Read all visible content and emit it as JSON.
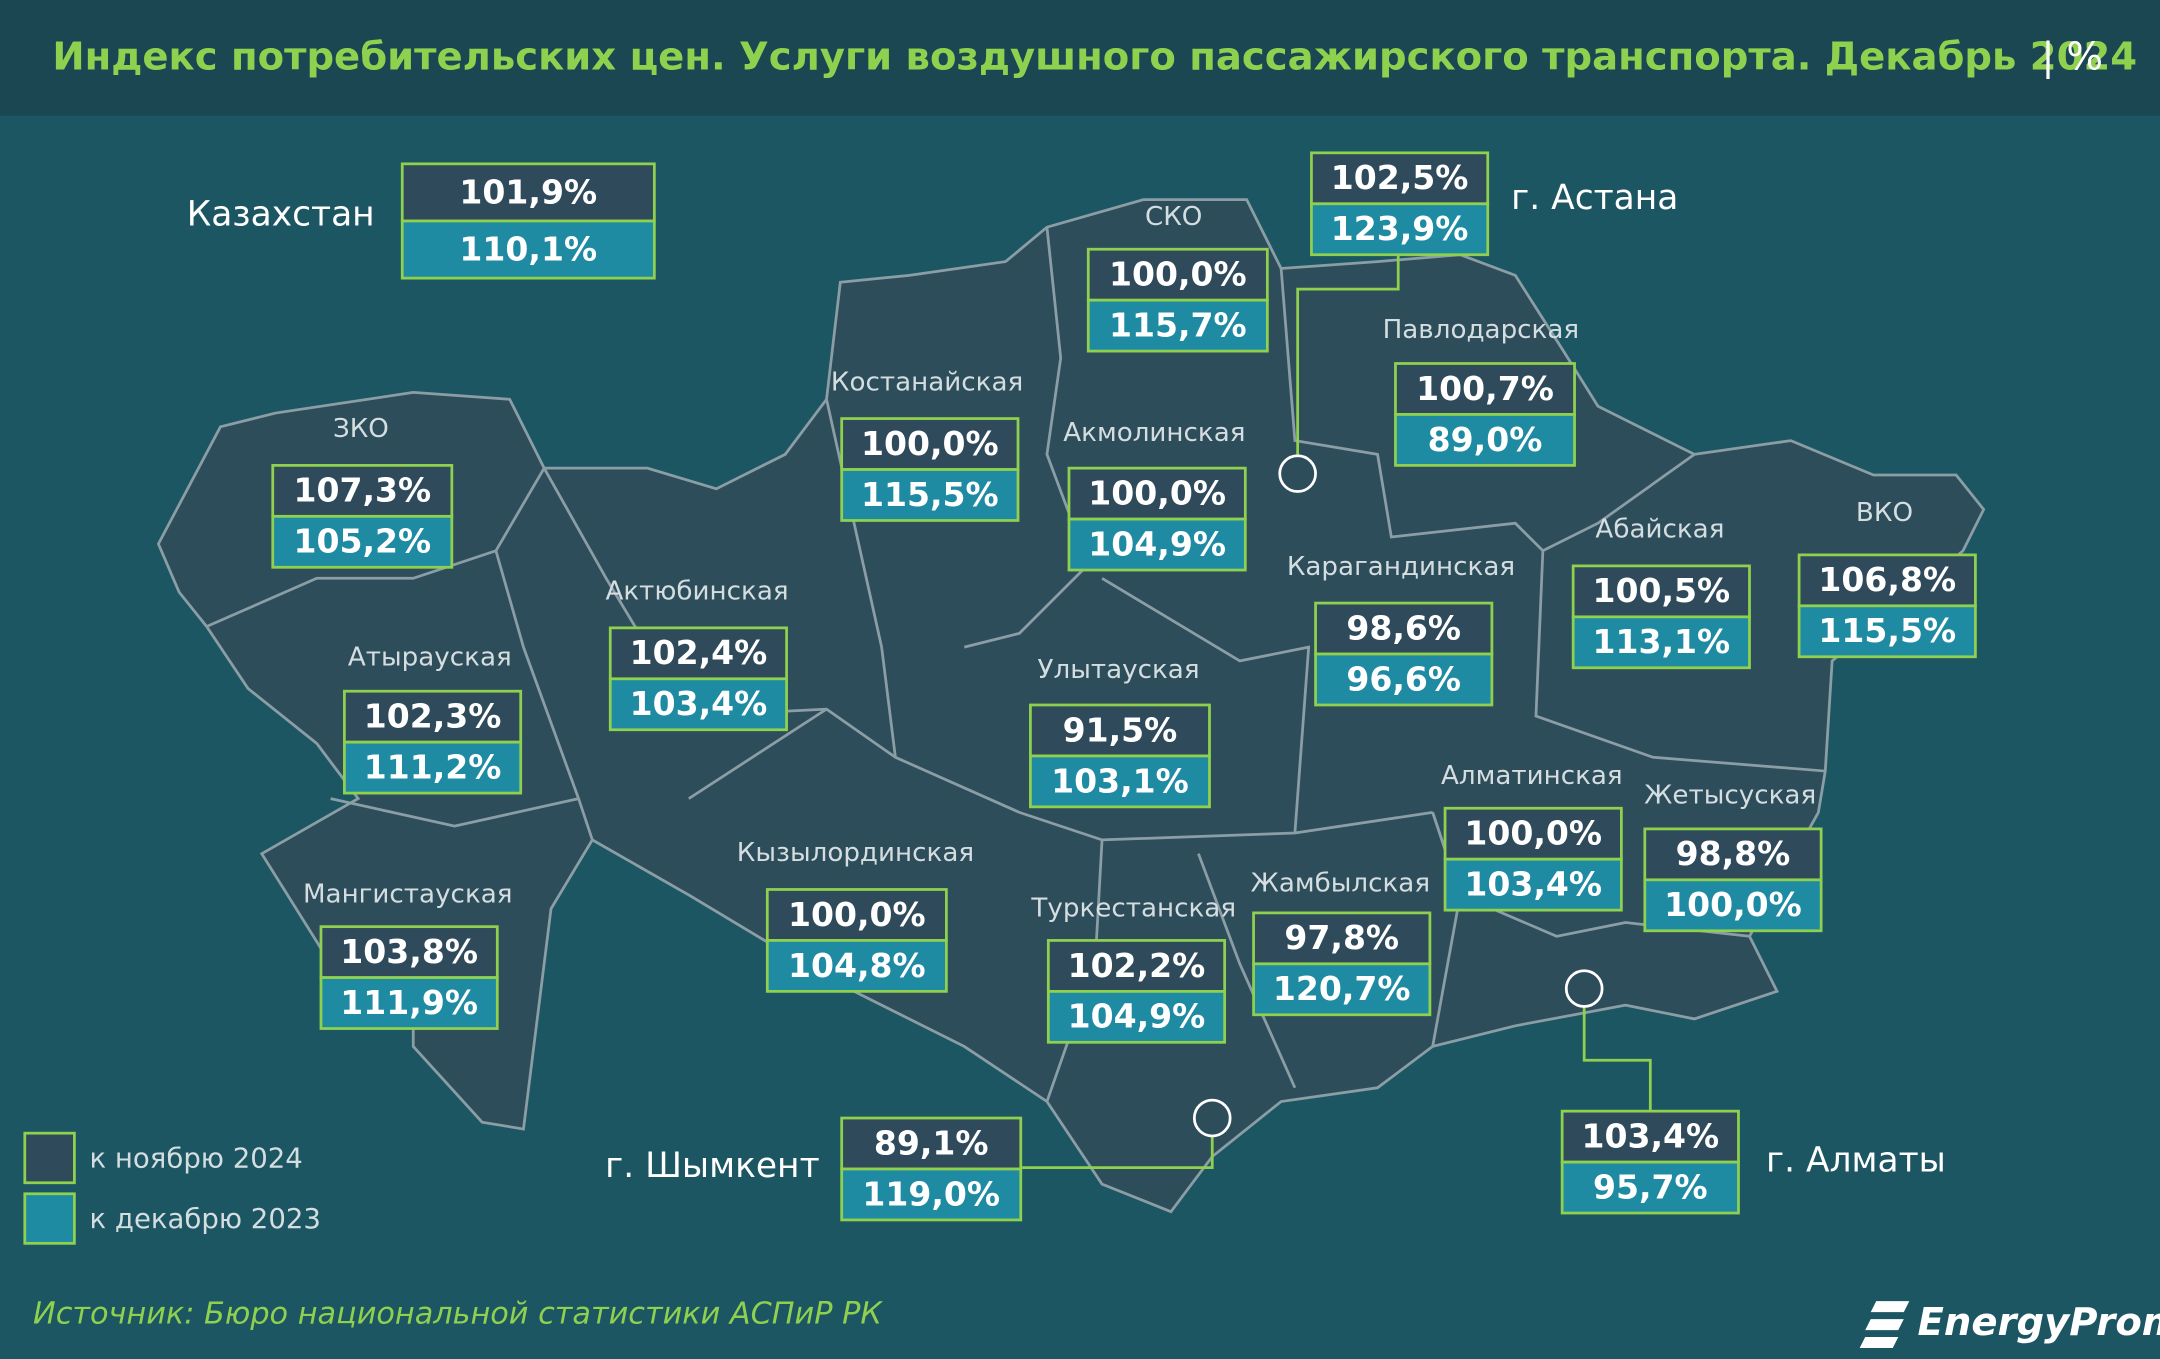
{
  "header": {
    "title": "Индекс потребительских цен. Услуги воздушного пассажирского транспорта. Декабрь 2024",
    "unit": "%"
  },
  "legend": [
    {
      "label": "к ноябрю 2024",
      "color": "#2f4a5a"
    },
    {
      "label": "к декабрю 2023",
      "color": "#1f8ba3"
    }
  ],
  "regions": [
    {
      "name": "Казахстан",
      "nov": "101,9%",
      "dec": "110,1%"
    },
    {
      "name": "г. Астана",
      "nov": "102,5%",
      "dec": "123,9%"
    },
    {
      "name": "СКО",
      "nov": "100,0%",
      "dec": "115,7%"
    },
    {
      "name": "Павлодарская",
      "nov": "100,7%",
      "dec": "89,0%"
    },
    {
      "name": "Костанайская",
      "nov": "100,0%",
      "dec": "115,5%"
    },
    {
      "name": "Акмолинская",
      "nov": "100,0%",
      "dec": "104,9%"
    },
    {
      "name": "ЗКО",
      "nov": "107,3%",
      "dec": "105,2%"
    },
    {
      "name": "Актюбинская",
      "nov": "102,4%",
      "dec": "103,4%"
    },
    {
      "name": "Карагандинская",
      "nov": "98,6%",
      "dec": "96,6%"
    },
    {
      "name": "Абайская",
      "nov": "100,5%",
      "dec": "113,1%"
    },
    {
      "name": "ВКО",
      "nov": "106,8%",
      "dec": "115,5%"
    },
    {
      "name": "Атырауская",
      "nov": "102,3%",
      "dec": "111,2%"
    },
    {
      "name": "Улытауская",
      "nov": "91,5%",
      "dec": "103,1%"
    },
    {
      "name": "Алматинская",
      "nov": "100,0%",
      "dec": "103,4%"
    },
    {
      "name": "Жетысуская",
      "nov": "98,8%",
      "dec": "100,0%"
    },
    {
      "name": "Кызылординская",
      "nov": "100,0%",
      "dec": "104,8%"
    },
    {
      "name": "Мангистауская",
      "nov": "103,8%",
      "dec": "111,9%"
    },
    {
      "name": "Туркестанская",
      "nov": "102,2%",
      "dec": "104,9%"
    },
    {
      "name": "Жамбылская",
      "nov": "97,8%",
      "dec": "120,7%"
    },
    {
      "name": "г. Шымкент",
      "nov": "89,1%",
      "dec": "119,0%"
    },
    {
      "name": "г. Алматы",
      "nov": "103,4%",
      "dec": "95,7%"
    }
  ],
  "footer": {
    "source": "Источник: Бюро национальной статистики АСПиР РК",
    "brand": "EnergyProm"
  }
}
